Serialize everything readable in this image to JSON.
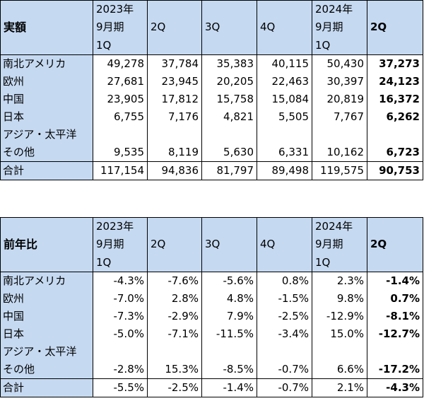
{
  "actual": {
    "corner": "実額",
    "headers": [
      [
        "2023年",
        "9月期",
        "1Q"
      ],
      [
        "2Q"
      ],
      [
        "3Q"
      ],
      [
        "4Q"
      ],
      [
        "2024年",
        "9月期",
        "1Q"
      ],
      [
        "2Q"
      ]
    ],
    "rows": [
      {
        "label": [
          "南北アメリカ"
        ],
        "values": [
          "49,278",
          "37,784",
          "35,383",
          "40,115",
          "50,430",
          "37,273"
        ]
      },
      {
        "label": [
          "欧州"
        ],
        "values": [
          "27,681",
          "23,945",
          "20,205",
          "22,463",
          "30,397",
          "24,123"
        ]
      },
      {
        "label": [
          "中国"
        ],
        "values": [
          "23,905",
          "17,812",
          "15,758",
          "15,084",
          "20,819",
          "16,372"
        ]
      },
      {
        "label": [
          "日本"
        ],
        "values": [
          "6,755",
          "7,176",
          "4,821",
          "5,505",
          "7,767",
          "6,262"
        ]
      },
      {
        "label": [
          "アジア・太平洋",
          "その他"
        ],
        "values": [
          "9,535",
          "8,119",
          "5,630",
          "6,331",
          "10,162",
          "6,723"
        ]
      }
    ],
    "total": {
      "label": "合計",
      "values": [
        "117,154",
        "94,836",
        "81,797",
        "89,498",
        "119,575",
        "90,753"
      ]
    }
  },
  "yoy": {
    "corner": "前年比",
    "headers": [
      [
        "2023年",
        "9月期",
        "1Q"
      ],
      [
        "2Q"
      ],
      [
        "3Q"
      ],
      [
        "4Q"
      ],
      [
        "2024年",
        "9月期",
        "1Q"
      ],
      [
        "2Q"
      ]
    ],
    "rows": [
      {
        "label": [
          "南北アメリカ"
        ],
        "values": [
          "-4.3%",
          "-7.6%",
          "-5.6%",
          "0.8%",
          "2.3%",
          "-1.4%"
        ]
      },
      {
        "label": [
          "欧州"
        ],
        "values": [
          "-7.0%",
          "2.8%",
          "4.8%",
          "-1.5%",
          "9.8%",
          "0.7%"
        ]
      },
      {
        "label": [
          "中国"
        ],
        "values": [
          "-7.3%",
          "-2.9%",
          "7.9%",
          "-2.5%",
          "-12.9%",
          "-8.1%"
        ]
      },
      {
        "label": [
          "日本"
        ],
        "values": [
          "-5.0%",
          "-7.1%",
          "-11.5%",
          "-3.4%",
          "15.0%",
          "-12.7%"
        ]
      },
      {
        "label": [
          "アジア・太平洋",
          "その他"
        ],
        "values": [
          "-2.8%",
          "15.3%",
          "-8.5%",
          "-0.7%",
          "6.6%",
          "-17.2%"
        ]
      }
    ],
    "total": {
      "label": "合計",
      "values": [
        "-5.5%",
        "-2.5%",
        "-1.4%",
        "-0.7%",
        "2.1%",
        "-4.3%"
      ]
    }
  },
  "colors": {
    "header_fill": "#c5d9f1",
    "border": "#000000"
  }
}
